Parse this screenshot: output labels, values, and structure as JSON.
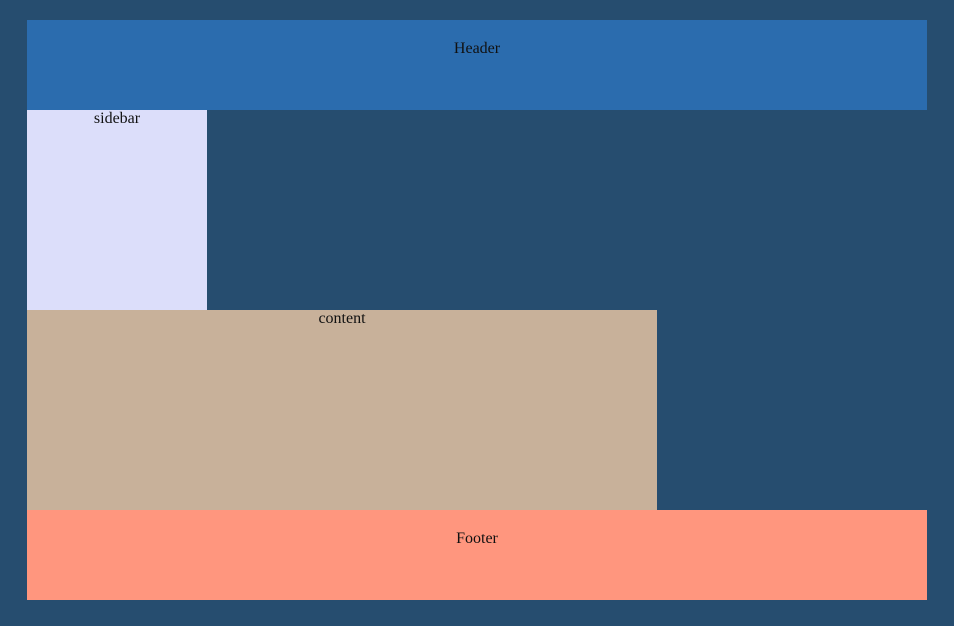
{
  "header": {
    "label": "Header"
  },
  "sidebar": {
    "label": "sidebar"
  },
  "content": {
    "label": "content"
  },
  "footer": {
    "label": "Footer"
  },
  "colors": {
    "page_background": "#264d6f",
    "header": "#2b6cae",
    "sidebar": "#dcdefa",
    "content": "#c8b19a",
    "footer": "#ff967e"
  }
}
